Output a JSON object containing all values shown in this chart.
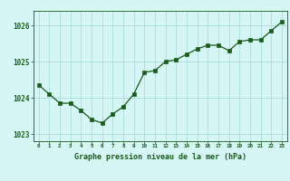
{
  "x": [
    0,
    1,
    2,
    3,
    4,
    5,
    6,
    7,
    8,
    9,
    10,
    11,
    12,
    13,
    14,
    15,
    16,
    17,
    18,
    19,
    20,
    21,
    22,
    23
  ],
  "y": [
    1024.35,
    1024.1,
    1023.85,
    1023.85,
    1023.65,
    1023.4,
    1023.3,
    1023.55,
    1023.75,
    1024.1,
    1024.7,
    1024.75,
    1025.0,
    1025.05,
    1025.2,
    1025.35,
    1025.45,
    1025.45,
    1025.3,
    1025.55,
    1025.6,
    1025.6,
    1025.85,
    1026.1
  ],
  "line_color": "#1a5c1a",
  "marker_color": "#1a5c1a",
  "bg_color": "#d6f5f5",
  "grid_color": "#aadddd",
  "xlabel": "Graphe pression niveau de la mer (hPa)",
  "xlabel_color": "#1a5c1a",
  "tick_color": "#1a5c1a",
  "ylim": [
    1022.8,
    1026.4
  ],
  "yticks": [
    1023,
    1024,
    1025,
    1026
  ],
  "xticks": [
    0,
    1,
    2,
    3,
    4,
    5,
    6,
    7,
    8,
    9,
    10,
    11,
    12,
    13,
    14,
    15,
    16,
    17,
    18,
    19,
    20,
    21,
    22,
    23
  ],
  "figsize": [
    3.2,
    2.0
  ],
  "dpi": 100
}
